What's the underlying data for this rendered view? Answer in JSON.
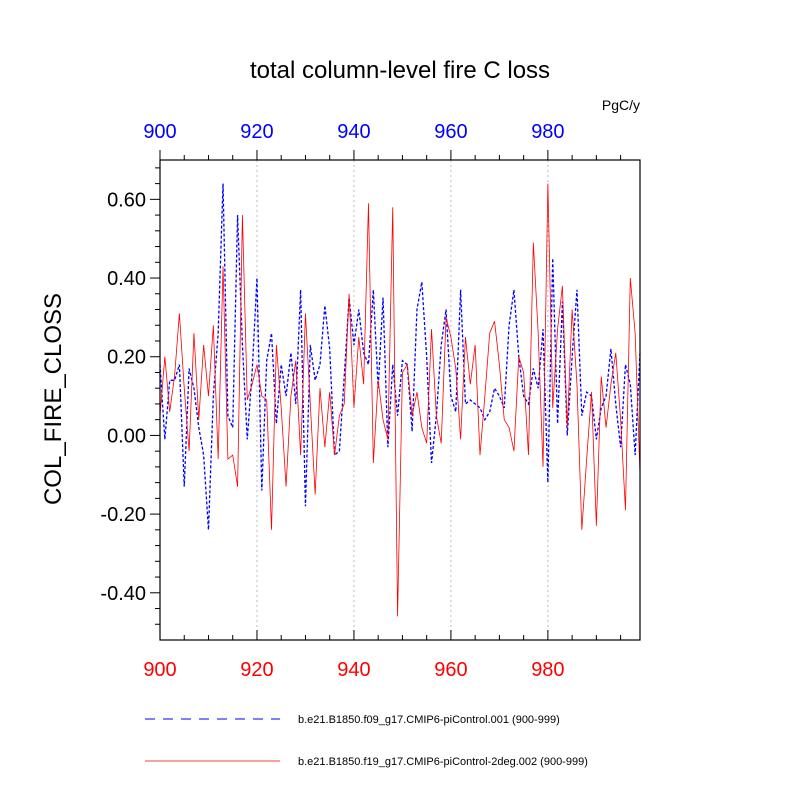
{
  "chart_data": {
    "type": "line",
    "title": "total column-level fire C loss",
    "ylabel": "COL_FIRE_CLOSS",
    "units": "PgC/y",
    "xlim": [
      900,
      999
    ],
    "ylim": [
      -0.52,
      0.7
    ],
    "x_ticks": [
      900,
      920,
      940,
      960,
      980
    ],
    "y_ticks": [
      -0.4,
      -0.2,
      0.0,
      0.2,
      0.4,
      0.6
    ],
    "y_tick_labels": [
      "-0.40",
      "-0.20",
      "0.00",
      "0.20",
      "0.40",
      "0.60"
    ],
    "grid": "vertical dotted at major x ticks",
    "colors": {
      "top_axis": "#0000ff",
      "bottom_axis": "#ff0000",
      "series_1": "#0000ff",
      "series_2": "#ff0000"
    },
    "series": [
      {
        "name": "b.e21.B1850.f09_g17.CMIP6-piControl.001 (900-999)",
        "style": "dashed",
        "color": "#0000ff",
        "x_start": 900,
        "values": [
          0.18,
          -0.01,
          0.14,
          0.14,
          0.18,
          -0.13,
          0.17,
          0.12,
          0.02,
          -0.05,
          -0.24,
          0.1,
          0.26,
          0.64,
          0.05,
          0.02,
          0.56,
          0.23,
          -0.01,
          0.16,
          0.4,
          -0.14,
          0.19,
          0.26,
          0.03,
          0.18,
          0.1,
          0.21,
          0.08,
          0.37,
          -0.18,
          0.23,
          0.14,
          0.18,
          0.33,
          0.22,
          -0.05,
          -0.04,
          0.15,
          0.35,
          0.23,
          0.32,
          0.21,
          0.18,
          0.37,
          0.12,
          0.35,
          -0.03,
          0.18,
          0.05,
          0.19,
          0.18,
          0.01,
          0.32,
          0.39,
          0.2,
          -0.07,
          0.05,
          0.23,
          0.32,
          0.1,
          0.06,
          0.37,
          0.08,
          0.09,
          0.08,
          0.07,
          0.04,
          0.06,
          0.12,
          0.1,
          0.07,
          0.28,
          0.37,
          0.2,
          0.1,
          0.08,
          0.17,
          0.12,
          0.27,
          -0.12,
          0.45,
          0.03,
          0.34,
          0.0,
          0.2,
          0.37,
          0.05,
          0.11,
          0.1,
          -0.01,
          0.07,
          0.1,
          0.22,
          0.08,
          -0.03,
          0.18,
          0.13,
          -0.05,
          0.21
        ]
      },
      {
        "name": "b.e21.B1850.f19_g17.CMIP6-piControl-2deg.002 (900-999)",
        "style": "solid",
        "color": "#ff0000",
        "x_start": 900,
        "values": [
          0.05,
          0.2,
          0.06,
          0.15,
          0.31,
          0.12,
          -0.04,
          0.26,
          0.04,
          0.23,
          0.1,
          0.28,
          -0.06,
          0.43,
          -0.06,
          -0.05,
          -0.13,
          0.56,
          0.09,
          0.13,
          0.18,
          0.1,
          0.09,
          -0.24,
          0.23,
          0.07,
          -0.13,
          0.1,
          0.19,
          -0.05,
          0.31,
          0.08,
          -0.15,
          0.12,
          -0.03,
          0.11,
          -0.05,
          0.05,
          0.08,
          0.36,
          0.07,
          0.25,
          0.13,
          0.59,
          -0.07,
          0.14,
          0.04,
          -0.01,
          0.58,
          -0.46,
          0.16,
          0.18,
          0.05,
          0.11,
          0.02,
          -0.02,
          0.27,
          0.05,
          -0.02,
          0.3,
          0.25,
          0.17,
          -0.01,
          0.25,
          0.13,
          0.23,
          -0.05,
          0.1,
          0.26,
          0.29,
          0.18,
          0.04,
          0.02,
          -0.04,
          0.2,
          0.16,
          -0.05,
          0.49,
          0.26,
          -0.08,
          0.64,
          0.07,
          0.27,
          0.38,
          0.02,
          0.32,
          0.13,
          -0.24,
          -0.06,
          0.11,
          -0.23,
          0.15,
          0.02,
          0.13,
          0.21,
          0.04,
          -0.19,
          0.4,
          0.26,
          -0.1
        ]
      }
    ]
  }
}
